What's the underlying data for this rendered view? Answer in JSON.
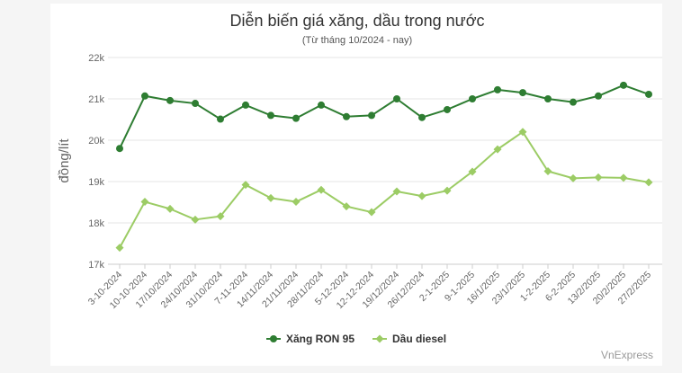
{
  "chart_data": {
    "type": "line",
    "title": "Diễn biến giá xăng, dầu trong nước",
    "subtitle": "(Từ tháng 10/2024 - nay)",
    "ylabel": "đồng/lít",
    "xlabel": "",
    "ylim": [
      17000,
      22000
    ],
    "yticks": [
      17000,
      18000,
      19000,
      20000,
      21000,
      22000
    ],
    "ytick_labels": [
      "17k",
      "18k",
      "19k",
      "20k",
      "21k",
      "22k"
    ],
    "grid": true,
    "legend_position": "bottom-center",
    "categories": [
      "3-10-2024",
      "10-10-2024",
      "17/10/2024",
      "24/10/2024",
      "31/10/2024",
      "7-11-2024",
      "14/11/2024",
      "21/11/2024",
      "28/11/2024",
      "5-12-2024",
      "12-12-2024",
      "19/12/2024",
      "26/12/2024",
      "2-1-2025",
      "9-1-2025",
      "16/1/2025",
      "23/1/2025",
      "1-2-2025",
      "6-2-2025",
      "13/2/2025",
      "20/2/2025",
      "27/2/2025"
    ],
    "series": [
      {
        "name": "Xăng RON 95",
        "color": "#2e7d32",
        "values": [
          19800,
          21070,
          20960,
          20890,
          20510,
          20850,
          20600,
          20530,
          20850,
          20570,
          20600,
          21000,
          20550,
          20740,
          21000,
          21220,
          21150,
          21000,
          20920,
          21070,
          21330,
          21110
        ]
      },
      {
        "name": "Dầu diesel",
        "color": "#9ccc65",
        "values": [
          17400,
          18510,
          18340,
          18080,
          18160,
          18920,
          18600,
          18510,
          18800,
          18400,
          18260,
          18760,
          18650,
          18780,
          19240,
          19780,
          20200,
          19250,
          19080,
          19100,
          19090,
          18980
        ]
      }
    ]
  },
  "source_label": "VnExpress"
}
